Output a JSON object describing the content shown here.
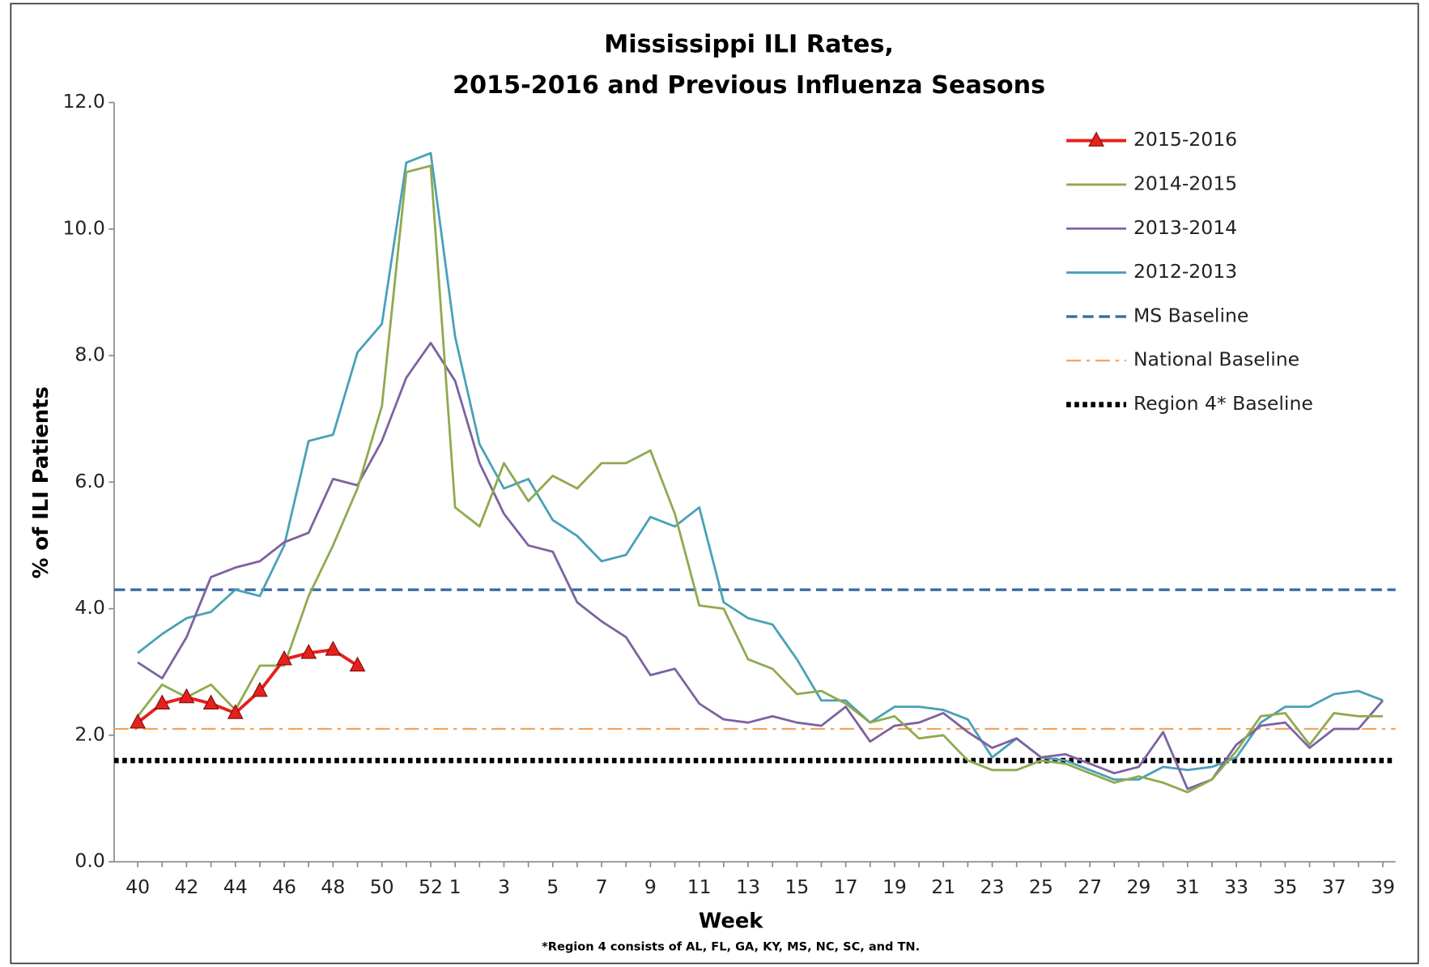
{
  "chart_data": {
    "type": "line",
    "title": [
      "Mississippi ILI Rates,",
      "2015-2016 and Previous Influenza Seasons"
    ],
    "x_label": "Week",
    "y_label": "% of ILI Patients",
    "footnote": "*Region 4 consists of AL, FL, GA, KY, MS, NC, SC, and TN.",
    "categories": [
      "40",
      null,
      "42",
      null,
      "44",
      null,
      "46",
      null,
      "48",
      null,
      "50",
      null,
      "52",
      "1",
      null,
      "3",
      null,
      "5",
      null,
      "7",
      null,
      "9",
      null,
      "11",
      null,
      "13",
      null,
      "15",
      null,
      "17",
      null,
      "19",
      null,
      "21",
      null,
      "23",
      null,
      "25",
      null,
      "27",
      null,
      "29",
      null,
      "31",
      null,
      "33",
      null,
      "35",
      null,
      "37",
      null,
      "39"
    ],
    "ylim": [
      0,
      12
    ],
    "yticks": [
      {
        "value": 0,
        "label": "0.0"
      },
      {
        "value": 2,
        "label": "2.0"
      },
      {
        "value": 4,
        "label": "4.0"
      },
      {
        "value": 6,
        "label": "6.0"
      },
      {
        "value": 8,
        "label": "8.0"
      },
      {
        "value": 10,
        "label": "10.0"
      },
      {
        "value": 12,
        "label": "12.0"
      }
    ],
    "grid": false,
    "legend": "right",
    "series": [
      {
        "name": "2015-2016",
        "color": "#e8201c",
        "marker": "triangle",
        "values": [
          2.2,
          2.5,
          2.6,
          2.5,
          2.35,
          2.7,
          3.2,
          3.3,
          3.35,
          3.1,
          null,
          null,
          null,
          null,
          null,
          null,
          null,
          null,
          null,
          null,
          null,
          null,
          null,
          null,
          null,
          null,
          null,
          null,
          null,
          null,
          null,
          null,
          null,
          null,
          null,
          null,
          null,
          null,
          null,
          null,
          null,
          null,
          null,
          null,
          null,
          null,
          null,
          null,
          null,
          null,
          null,
          null
        ]
      },
      {
        "name": "2014-2015",
        "color": "#8faa4f",
        "values": [
          2.3,
          2.8,
          2.6,
          2.8,
          2.4,
          3.1,
          3.1,
          4.2,
          5.0,
          5.9,
          7.2,
          10.9,
          11.0,
          5.6,
          5.3,
          6.3,
          5.7,
          6.1,
          5.9,
          6.3,
          6.3,
          6.5,
          5.5,
          4.05,
          4.0,
          3.2,
          3.05,
          2.65,
          2.7,
          2.5,
          2.2,
          2.3,
          1.95,
          2.0,
          1.6,
          1.45,
          1.45,
          1.6,
          1.55,
          1.4,
          1.25,
          1.35,
          1.25,
          1.1,
          1.3,
          1.75,
          2.3,
          2.35,
          1.85,
          2.35,
          2.3,
          2.3
        ]
      },
      {
        "name": "2013-2014",
        "color": "#7e62a1",
        "values": [
          3.15,
          2.9,
          3.55,
          4.5,
          4.65,
          4.75,
          5.05,
          5.2,
          6.05,
          5.95,
          6.65,
          7.65,
          8.2,
          7.6,
          6.3,
          5.5,
          5.0,
          4.9,
          4.1,
          3.8,
          3.55,
          2.95,
          3.05,
          2.5,
          2.25,
          2.2,
          2.3,
          2.2,
          2.15,
          2.45,
          1.9,
          2.15,
          2.2,
          2.35,
          2.05,
          1.8,
          1.95,
          1.65,
          1.7,
          1.55,
          1.4,
          1.5,
          2.05,
          1.15,
          1.3,
          1.85,
          2.15,
          2.2,
          1.8,
          2.1,
          2.1,
          2.55
        ]
      },
      {
        "name": "2012-2013",
        "color": "#4aa0b8",
        "values": [
          3.3,
          3.6,
          3.85,
          3.95,
          4.3,
          4.2,
          5.0,
          6.65,
          6.75,
          8.05,
          8.5,
          11.05,
          11.2,
          8.3,
          6.6,
          5.9,
          6.05,
          5.4,
          5.15,
          4.75,
          4.85,
          5.45,
          5.3,
          5.6,
          4.1,
          3.85,
          3.75,
          3.2,
          2.55,
          2.55,
          2.2,
          2.45,
          2.45,
          2.4,
          2.25,
          1.65,
          1.95,
          1.65,
          1.6,
          1.45,
          1.3,
          1.3,
          1.5,
          1.45,
          1.5,
          1.65,
          2.2,
          2.45,
          2.45,
          2.65,
          2.7,
          2.55
        ]
      }
    ],
    "baselines": [
      {
        "name": "MS Baseline",
        "color": "#3d6aa6",
        "dash": "dashed",
        "value": 4.3
      },
      {
        "name": "National Baseline",
        "color": "#f4a35c",
        "dash": "dashdot",
        "value": 2.1
      },
      {
        "name": "Region 4* Baseline",
        "color": "#000000",
        "dash": "dotted",
        "value": 1.6
      }
    ]
  }
}
